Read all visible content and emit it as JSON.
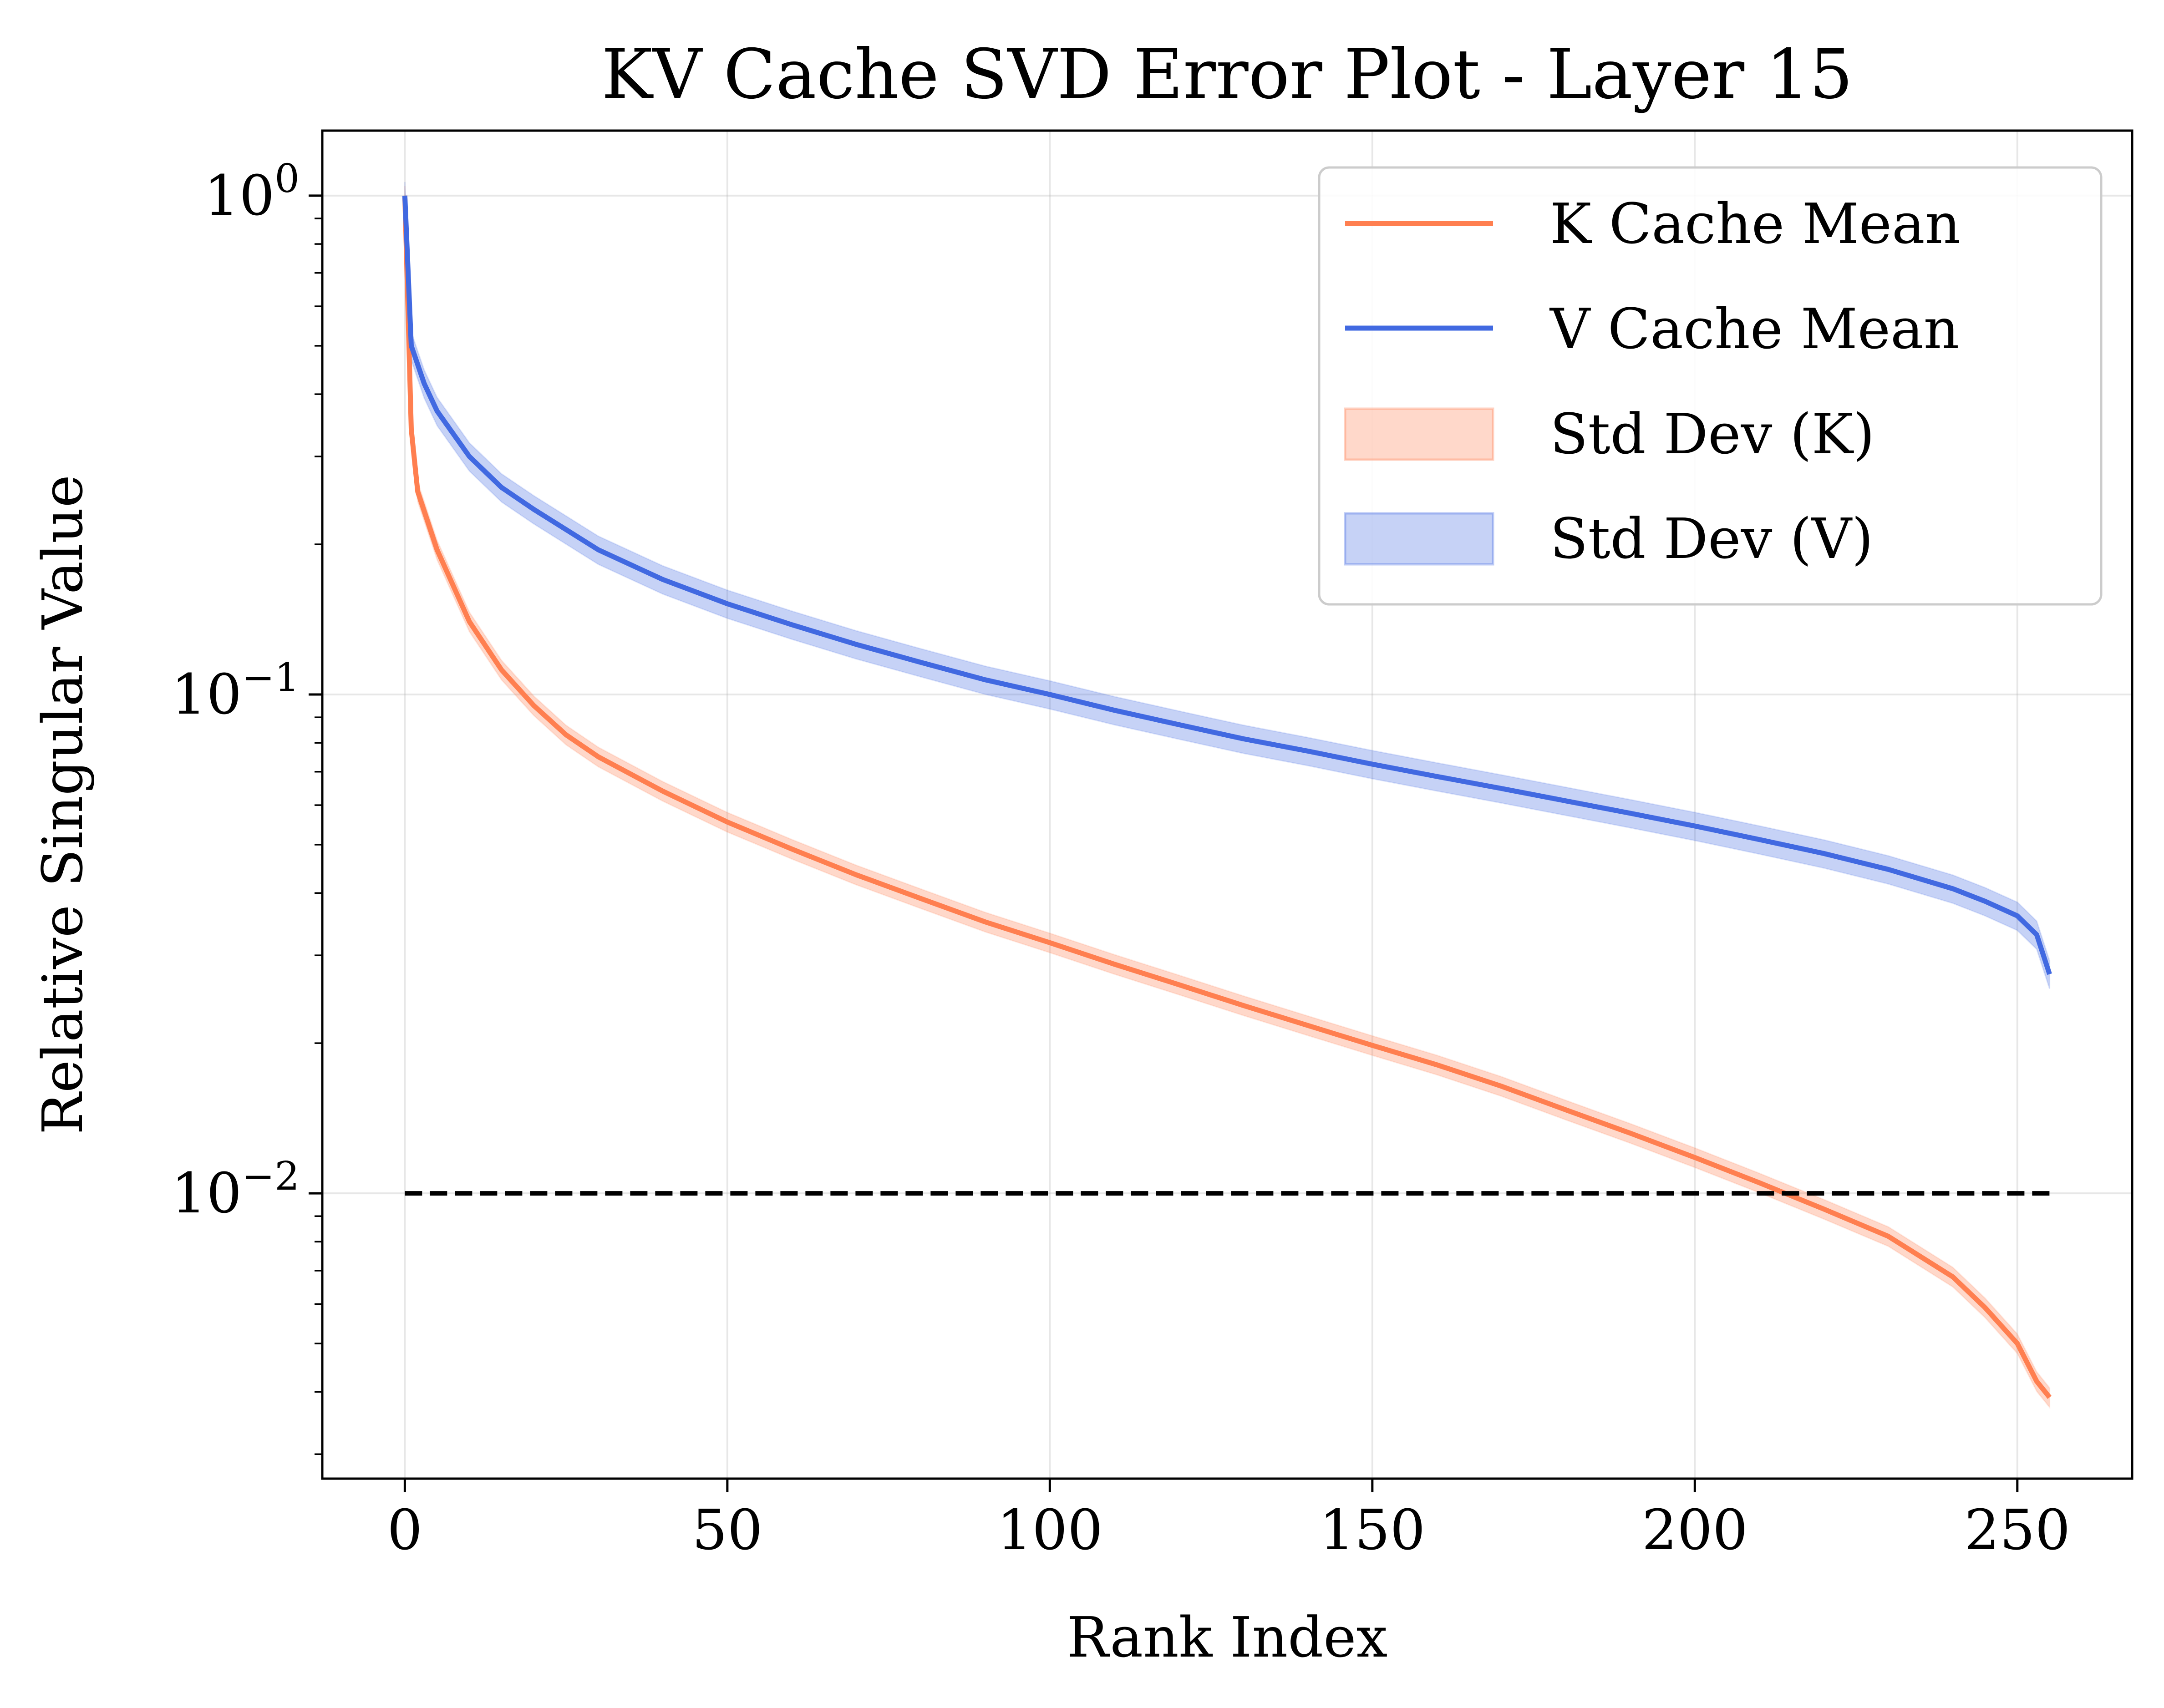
{
  "chart_data": {
    "type": "line",
    "title": "KV Cache SVD Error Plot - Layer 15",
    "xlabel": "Rank Index",
    "ylabel": "Relative Singular Value",
    "xlim": [
      -12.8,
      267.8
    ],
    "ylim": [
      0.00268,
      1.35
    ],
    "yscale": "log",
    "grid": true,
    "legend_position": "top-right",
    "x_ticks": [
      {
        "value": 0,
        "label": "0"
      },
      {
        "value": 50,
        "label": "50"
      },
      {
        "value": 100,
        "label": "100"
      },
      {
        "value": 150,
        "label": "150"
      },
      {
        "value": 200,
        "label": "200"
      },
      {
        "value": 250,
        "label": "250"
      }
    ],
    "y_ticks": [
      {
        "value": 1,
        "base": "10",
        "exp": "0"
      },
      {
        "value": 0.1,
        "base": "10",
        "exp": "−1"
      },
      {
        "value": 0.01,
        "base": "10",
        "exp": "−2"
      }
    ],
    "series": [
      {
        "name": "K Cache Mean",
        "color": "#ff7f50",
        "band_label": "Std Dev (K)",
        "band_spread": 0.045,
        "x": [
          0,
          1,
          2,
          5,
          10,
          15,
          20,
          25,
          30,
          40,
          50,
          60,
          70,
          80,
          90,
          100,
          110,
          120,
          130,
          140,
          150,
          160,
          170,
          180,
          190,
          200,
          210,
          220,
          230,
          240,
          245,
          250,
          253,
          255
        ],
        "y": [
          1.0,
          0.34,
          0.255,
          0.195,
          0.14,
          0.112,
          0.095,
          0.083,
          0.075,
          0.064,
          0.0555,
          0.049,
          0.0435,
          0.039,
          0.035,
          0.0318,
          0.0288,
          0.0262,
          0.0238,
          0.0217,
          0.0198,
          0.0181,
          0.0164,
          0.0147,
          0.0132,
          0.0118,
          0.0105,
          0.0093,
          0.0082,
          0.0068,
          0.0059,
          0.005,
          0.0042,
          0.0039
        ]
      },
      {
        "name": "V Cache Mean",
        "color": "#4169e1",
        "band_label": "Std Dev (V)",
        "band_spread": 0.065,
        "x": [
          0,
          1,
          3,
          5,
          10,
          15,
          20,
          30,
          40,
          50,
          60,
          70,
          80,
          90,
          100,
          110,
          120,
          130,
          140,
          150,
          160,
          170,
          180,
          190,
          200,
          210,
          220,
          230,
          240,
          245,
          250,
          253,
          255
        ],
        "y": [
          1.0,
          0.5,
          0.42,
          0.37,
          0.3,
          0.26,
          0.235,
          0.195,
          0.17,
          0.152,
          0.138,
          0.126,
          0.116,
          0.107,
          0.1,
          0.093,
          0.087,
          0.0815,
          0.077,
          0.0725,
          0.0685,
          0.0648,
          0.0612,
          0.0578,
          0.0545,
          0.0512,
          0.048,
          0.0446,
          0.0408,
          0.0385,
          0.036,
          0.033,
          0.0275
        ]
      }
    ],
    "reference_line": {
      "y": 0.01,
      "x_range": [
        0,
        255
      ],
      "style": "dashed",
      "color": "#000000"
    }
  }
}
